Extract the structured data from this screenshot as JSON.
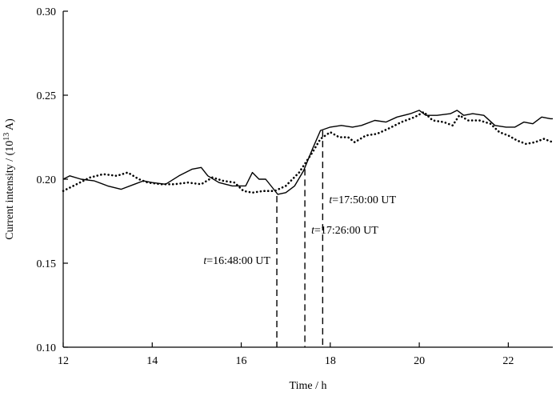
{
  "chart_data": {
    "type": "line",
    "title": "",
    "xlabel": "Time / h",
    "ylabel": {
      "prefix": "Current intensity / (10",
      "exponent": "13",
      "suffix": " A)"
    },
    "xlim": [
      12,
      23
    ],
    "ylim": [
      0.1,
      0.3
    ],
    "x_ticks": [
      "12",
      "14",
      "16",
      "18",
      "20",
      "22"
    ],
    "y_ticks": [
      "0.10",
      "0.15",
      "0.20",
      "0.25",
      "0.30"
    ],
    "series": [
      {
        "style": "solid",
        "x": [
          12.0,
          12.15,
          12.4,
          12.7,
          13.0,
          13.3,
          13.6,
          13.8,
          14.0,
          14.3,
          14.6,
          14.9,
          15.1,
          15.25,
          15.5,
          15.8,
          16.1,
          16.25,
          16.4,
          16.55,
          16.7,
          16.82,
          17.0,
          17.2,
          17.4,
          17.6,
          17.78,
          18.0,
          18.25,
          18.5,
          18.7,
          19.0,
          19.25,
          19.5,
          19.8,
          20.0,
          20.15,
          20.4,
          20.7,
          20.85,
          21.0,
          21.2,
          21.45,
          21.7,
          21.95,
          22.15,
          22.35,
          22.55,
          22.75,
          22.95,
          23.0
        ],
        "y": [
          0.2,
          0.202,
          0.2,
          0.199,
          0.196,
          0.194,
          0.197,
          0.199,
          0.198,
          0.197,
          0.202,
          0.206,
          0.207,
          0.202,
          0.198,
          0.196,
          0.196,
          0.204,
          0.2,
          0.2,
          0.195,
          0.191,
          0.192,
          0.196,
          0.205,
          0.218,
          0.229,
          0.231,
          0.232,
          0.231,
          0.232,
          0.235,
          0.234,
          0.237,
          0.239,
          0.241,
          0.238,
          0.238,
          0.239,
          0.241,
          0.238,
          0.239,
          0.238,
          0.232,
          0.231,
          0.231,
          0.234,
          0.233,
          0.237,
          0.236,
          0.236
        ]
      },
      {
        "style": "dotted",
        "x": [
          12.0,
          12.3,
          12.6,
          12.9,
          13.2,
          13.45,
          13.7,
          13.9,
          14.2,
          14.5,
          14.8,
          15.1,
          15.35,
          15.6,
          15.85,
          16.05,
          16.25,
          16.5,
          16.75,
          17.0,
          17.3,
          17.6,
          17.78,
          18.0,
          18.2,
          18.4,
          18.55,
          18.8,
          19.05,
          19.3,
          19.6,
          19.9,
          20.1,
          20.3,
          20.55,
          20.75,
          20.9,
          21.1,
          21.35,
          21.6,
          21.8,
          22.0,
          22.2,
          22.4,
          22.6,
          22.8,
          23.0
        ],
        "y": [
          0.193,
          0.197,
          0.201,
          0.203,
          0.202,
          0.204,
          0.2,
          0.198,
          0.197,
          0.197,
          0.198,
          0.197,
          0.201,
          0.199,
          0.198,
          0.193,
          0.192,
          0.193,
          0.193,
          0.196,
          0.204,
          0.216,
          0.224,
          0.228,
          0.225,
          0.225,
          0.222,
          0.226,
          0.227,
          0.23,
          0.234,
          0.237,
          0.24,
          0.235,
          0.234,
          0.232,
          0.238,
          0.235,
          0.235,
          0.233,
          0.228,
          0.226,
          0.223,
          0.221,
          0.222,
          0.224,
          0.222
        ]
      }
    ],
    "annotations": [
      {
        "var": "t",
        "text": "=16:48:00 UT",
        "x": 16.8,
        "y_top": 0.19,
        "label_y": 0.152
      },
      {
        "var": "t",
        "text": "=17:26:00 UT",
        "x": 17.43,
        "y_top": 0.206,
        "label_y": 0.17
      },
      {
        "var": "t",
        "text": "=17:50:00 UT",
        "x": 17.83,
        "y_top": 0.229,
        "label_y": 0.188
      }
    ],
    "grid": false,
    "legend": "none"
  }
}
